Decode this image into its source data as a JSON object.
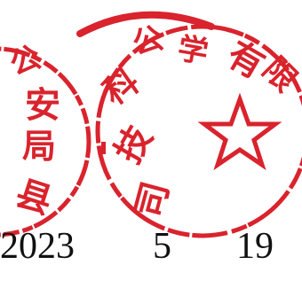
{
  "stamps": [
    {
      "name": "left-seal",
      "color": "#d9232d",
      "characters": [
        "公",
        "安",
        "局",
        "县"
      ]
    },
    {
      "name": "right-seal",
      "color": "#d9232d",
      "characters": [
        "有",
        "限",
        "公",
        "司",
        "科",
        "学",
        "技"
      ]
    }
  ],
  "date": {
    "year": "2023",
    "month": "5",
    "day": "19"
  }
}
